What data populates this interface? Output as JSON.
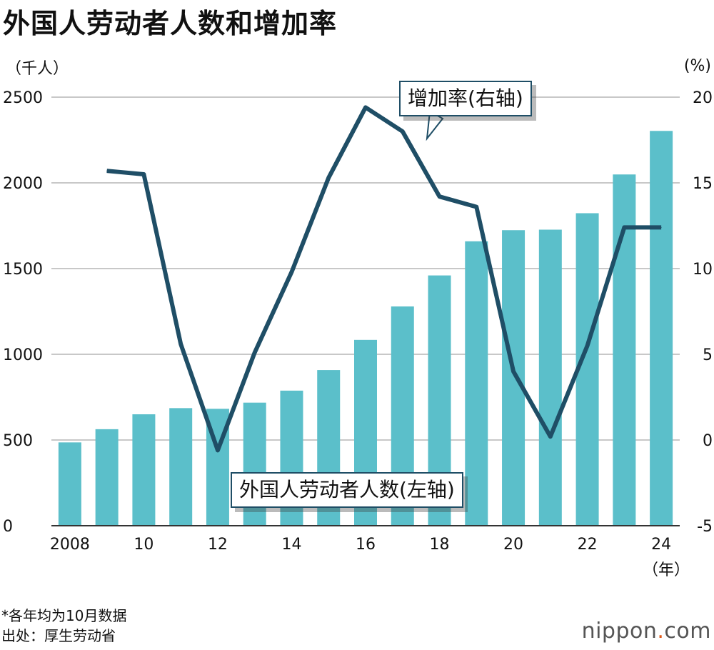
{
  "title": "外国人劳动者人数和增加率",
  "left_unit": "（千人）",
  "right_unit": "(%)",
  "year_unit": "（年）",
  "bar_label": "外国人劳动者人数(左轴)",
  "line_label": "增加率(右轴)",
  "footnote": "*各年均为10月数据",
  "source": "出处：厚生劳动省",
  "logo": {
    "name": "nippon",
    "dot": ".",
    "suffix": "com"
  },
  "colors": {
    "bar": "#5bbfca",
    "line": "#1f4e66",
    "grid": "#c8c8c8"
  },
  "chart_data": {
    "type": "bar+line",
    "title": "外国人劳动者人数和增加率",
    "categories": [
      "2008",
      "2009",
      "2010",
      "2011",
      "2012",
      "2013",
      "2014",
      "2015",
      "2016",
      "2017",
      "2018",
      "2019",
      "2020",
      "2021",
      "2022",
      "2023",
      "2024"
    ],
    "x_tick_labels": [
      {
        "category": "2008",
        "label": "2008"
      },
      {
        "category": "2010",
        "label": "10"
      },
      {
        "category": "2012",
        "label": "12"
      },
      {
        "category": "2014",
        "label": "14"
      },
      {
        "category": "2016",
        "label": "16"
      },
      {
        "category": "2018",
        "label": "18"
      },
      {
        "category": "2020",
        "label": "20"
      },
      {
        "category": "2022",
        "label": "22"
      },
      {
        "category": "2024",
        "label": "24"
      }
    ],
    "series": [
      {
        "name": "外国人劳动者人数(左轴)",
        "type": "bar",
        "axis": "left",
        "values": [
          486,
          563,
          650,
          686,
          682,
          718,
          788,
          908,
          1084,
          1279,
          1460,
          1659,
          1724,
          1727,
          1823,
          2049,
          2303
        ]
      },
      {
        "name": "增加率(右轴)",
        "type": "line",
        "axis": "right",
        "values": [
          null,
          15.7,
          15.5,
          5.6,
          -0.6,
          5.1,
          9.8,
          15.3,
          19.4,
          18.0,
          14.2,
          13.6,
          4.0,
          0.2,
          5.5,
          12.4,
          12.4
        ]
      }
    ],
    "left_axis": {
      "min": 0,
      "max": 2500,
      "ticks": [
        0,
        500,
        1000,
        1500,
        2000,
        2500
      ],
      "label": "（千人）"
    },
    "right_axis": {
      "min": -5,
      "max": 20,
      "ticks": [
        -5,
        0,
        5,
        10,
        15,
        20
      ],
      "label": "(%)"
    },
    "xlabel": "（年）",
    "grid": true
  }
}
